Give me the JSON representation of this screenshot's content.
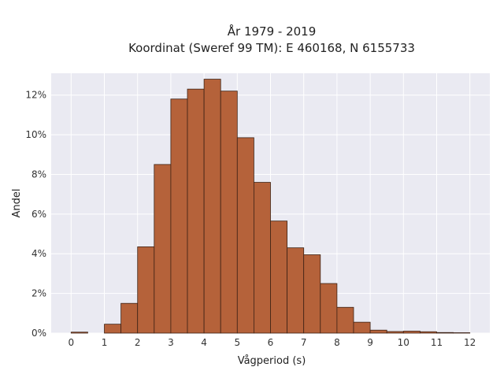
{
  "chart_data": {
    "type": "bar",
    "title_line1": "År 1979 - 2019",
    "title_line2": "Koordinat (Sweref 99 TM): E 460168, N 6155733",
    "xlabel": "Vågperiod (s)",
    "ylabel": "Andel",
    "xlim": [
      -0.6,
      12.6
    ],
    "ylim": [
      0,
      13.1
    ],
    "x_ticks": [
      0,
      1,
      2,
      3,
      4,
      5,
      6,
      7,
      8,
      9,
      10,
      11,
      12
    ],
    "x_tick_labels": [
      "0",
      "1",
      "2",
      "3",
      "4",
      "5",
      "6",
      "7",
      "8",
      "9",
      "10",
      "11",
      "12"
    ],
    "y_ticks": [
      0,
      2,
      4,
      6,
      8,
      10,
      12
    ],
    "y_tick_labels": [
      "0%",
      "2%",
      "4%",
      "6%",
      "8%",
      "10%",
      "12%"
    ],
    "bin_width": 0.5,
    "bin_starts": [
      0,
      0.5,
      1,
      1.5,
      2,
      2.5,
      3,
      3.5,
      4,
      4.5,
      5,
      5.5,
      6,
      6.5,
      7,
      7.5,
      8,
      8.5,
      9,
      9.5,
      10,
      10.5,
      11,
      11.5
    ],
    "values": [
      0.05,
      0.0,
      0.45,
      1.5,
      4.35,
      8.5,
      11.8,
      12.3,
      12.8,
      12.2,
      9.85,
      7.6,
      5.65,
      4.3,
      3.95,
      2.5,
      1.3,
      0.55,
      0.15,
      0.08,
      0.1,
      0.07,
      0.03,
      0.02
    ],
    "grid": true,
    "colors": {
      "bar_fill": "#b5623a",
      "bar_stroke": "#3d2215",
      "plot_bg": "#eaeaf2",
      "grid": "#ffffff"
    }
  }
}
